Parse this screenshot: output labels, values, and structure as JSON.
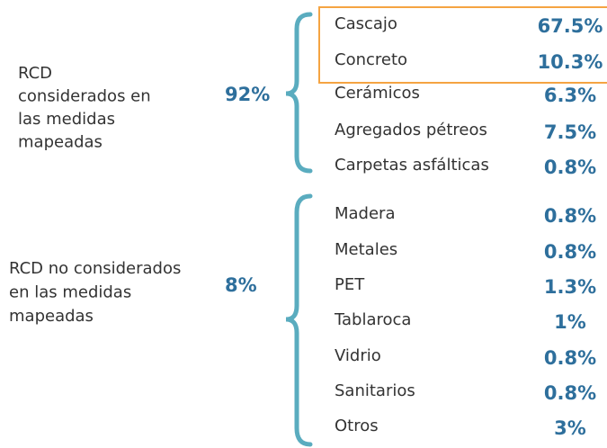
{
  "groups": [
    {
      "label_lines": [
        "RCD",
        "considerados en",
        "las medidas",
        "mapeadas"
      ],
      "total": "92%",
      "items": [
        {
          "name": "Cascajo",
          "value": "67.5%"
        },
        {
          "name": "Concreto",
          "value": "10.3%"
        },
        {
          "name": "Cerámicos",
          "value": "6.3%"
        },
        {
          "name": "Agregados pétreos",
          "value": "7.5%"
        },
        {
          "name": "Carpetas asfálticas",
          "value": "0.8%"
        }
      ]
    },
    {
      "label_lines": [
        "RCD no considerados",
        "en las medidas",
        "mapeadas"
      ],
      "total": "8%",
      "items": [
        {
          "name": "Madera",
          "value": "0.8%"
        },
        {
          "name": "Metales",
          "value": "0.8%"
        },
        {
          "name": "PET",
          "value": "1.3%"
        },
        {
          "name": "Tablaroca",
          "value": "1%"
        },
        {
          "name": "Vidrio",
          "value": "0.8%"
        },
        {
          "name": "Sanitarios",
          "value": "0.8%"
        },
        {
          "name": "Otros",
          "value": "3%"
        }
      ]
    }
  ]
}
